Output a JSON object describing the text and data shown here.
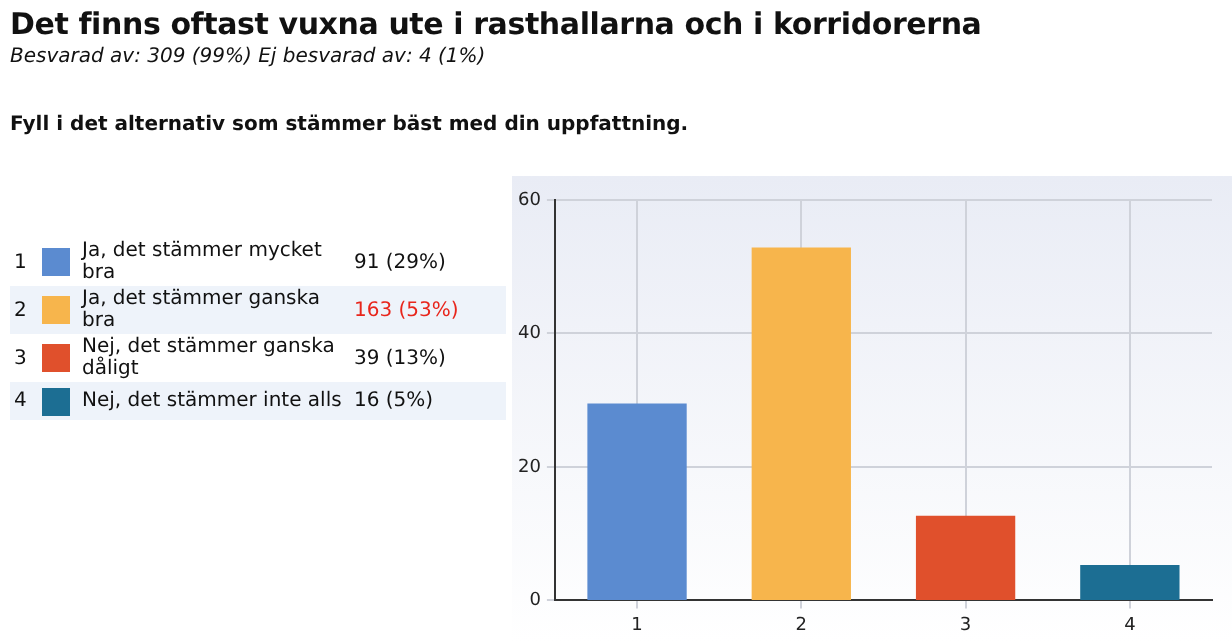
{
  "chart_data": {
    "type": "bar",
    "title": "Det finns oftast vuxna ute i rasthallarna och i korridorerna",
    "subtitle": "Besvarad av: 309 (99%) Ej besvarad av: 4 (1%)",
    "categories": [
      "1",
      "2",
      "3",
      "4"
    ],
    "values": [
      29.4,
      52.8,
      12.6,
      5.2
    ],
    "colors": [
      "#5b8bd0",
      "#f7b54c",
      "#e0502c",
      "#1c6e93"
    ],
    "annotations": [
      "Fyll i det alternativ som stämmer bäst med din uppfattning.",
      "Ja, det stämmer mycket bra",
      "Ja, det stämmer ganska bra",
      "Nej, det stämmer ganska dåligt",
      "Nej, det stämmer inte alls",
      "91 (29%)",
      "163 (53%)",
      "39 (13%)",
      "16 (5%)"
    ],
    "ylim": [
      0,
      60
    ],
    "yticks": [
      0,
      20,
      40,
      60
    ],
    "grid": true,
    "legend": false
  }
}
